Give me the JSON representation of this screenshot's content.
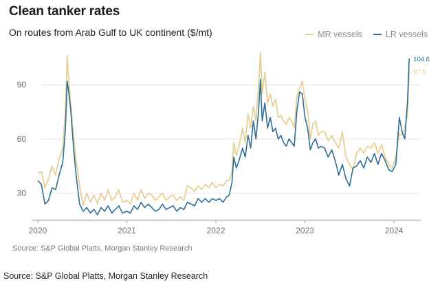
{
  "chart_data": {
    "type": "line",
    "title": "Clean tanker rates",
    "subtitle": "On routes from Arab Gulf to UK continent ($/mt)",
    "xlabel": "",
    "ylabel": "",
    "xlim": [
      2019.9,
      2024.3
    ],
    "ylim": [
      15,
      108
    ],
    "x_ticks": [
      {
        "value": 2020,
        "label": "2020"
      },
      {
        "value": 2021,
        "label": "2021"
      },
      {
        "value": 2022,
        "label": "2022"
      },
      {
        "value": 2023,
        "label": "2023"
      },
      {
        "value": 2024,
        "label": "2024"
      }
    ],
    "y_ticks": [
      {
        "value": 30,
        "label": "30"
      },
      {
        "value": 60,
        "label": "60"
      },
      {
        "value": 90,
        "label": "90"
      }
    ],
    "grid": true,
    "legend_position": "top-right",
    "series": [
      {
        "name": "MR vessels",
        "color": "#e6cf93",
        "end_label": "97.5",
        "points": [
          [
            2020.0,
            41
          ],
          [
            2020.04,
            42
          ],
          [
            2020.08,
            33
          ],
          [
            2020.12,
            38
          ],
          [
            2020.16,
            45
          ],
          [
            2020.2,
            40
          ],
          [
            2020.24,
            49
          ],
          [
            2020.28,
            55
          ],
          [
            2020.31,
            75
          ],
          [
            2020.33,
            106
          ],
          [
            2020.35,
            90
          ],
          [
            2020.37,
            80
          ],
          [
            2020.4,
            62
          ],
          [
            2020.43,
            48
          ],
          [
            2020.47,
            34
          ],
          [
            2020.51,
            23
          ],
          [
            2020.55,
            30
          ],
          [
            2020.59,
            25
          ],
          [
            2020.63,
            29
          ],
          [
            2020.67,
            24
          ],
          [
            2020.71,
            30
          ],
          [
            2020.75,
            26
          ],
          [
            2020.79,
            32
          ],
          [
            2020.83,
            26
          ],
          [
            2020.87,
            28
          ],
          [
            2020.91,
            32
          ],
          [
            2020.95,
            25
          ],
          [
            2021.0,
            26
          ],
          [
            2021.04,
            24
          ],
          [
            2021.08,
            30
          ],
          [
            2021.12,
            26
          ],
          [
            2021.16,
            32
          ],
          [
            2021.2,
            27
          ],
          [
            2021.24,
            30
          ],
          [
            2021.28,
            29
          ],
          [
            2021.32,
            26
          ],
          [
            2021.36,
            28
          ],
          [
            2021.4,
            30
          ],
          [
            2021.44,
            26
          ],
          [
            2021.48,
            28
          ],
          [
            2021.52,
            29
          ],
          [
            2021.56,
            26
          ],
          [
            2021.6,
            28
          ],
          [
            2021.64,
            26
          ],
          [
            2021.68,
            34
          ],
          [
            2021.72,
            33
          ],
          [
            2021.76,
            31
          ],
          [
            2021.8,
            34
          ],
          [
            2021.84,
            32
          ],
          [
            2021.88,
            35
          ],
          [
            2021.92,
            33
          ],
          [
            2021.96,
            36
          ],
          [
            2022.0,
            33
          ],
          [
            2022.04,
            35
          ],
          [
            2022.08,
            34
          ],
          [
            2022.12,
            37
          ],
          [
            2022.15,
            37
          ],
          [
            2022.18,
            42
          ],
          [
            2022.2,
            58
          ],
          [
            2022.23,
            51
          ],
          [
            2022.26,
            56
          ],
          [
            2022.3,
            66
          ],
          [
            2022.33,
            58
          ],
          [
            2022.36,
            74
          ],
          [
            2022.39,
            66
          ],
          [
            2022.42,
            78
          ],
          [
            2022.45,
            70
          ],
          [
            2022.48,
            90
          ],
          [
            2022.5,
            108
          ],
          [
            2022.52,
            85
          ],
          [
            2022.55,
            97
          ],
          [
            2022.58,
            80
          ],
          [
            2022.61,
            85
          ],
          [
            2022.64,
            78
          ],
          [
            2022.67,
            82
          ],
          [
            2022.7,
            72
          ],
          [
            2022.73,
            73
          ],
          [
            2022.76,
            70
          ],
          [
            2022.79,
            68
          ],
          [
            2022.82,
            72
          ],
          [
            2022.85,
            70
          ],
          [
            2022.88,
            66
          ],
          [
            2022.91,
            84
          ],
          [
            2022.94,
            88
          ],
          [
            2022.97,
            92
          ],
          [
            2023.0,
            82
          ],
          [
            2023.03,
            76
          ],
          [
            2023.06,
            60
          ],
          [
            2023.09,
            68
          ],
          [
            2023.12,
            70
          ],
          [
            2023.15,
            62
          ],
          [
            2023.18,
            64
          ],
          [
            2023.22,
            64
          ],
          [
            2023.26,
            59
          ],
          [
            2023.3,
            62
          ],
          [
            2023.34,
            58
          ],
          [
            2023.38,
            55
          ],
          [
            2023.42,
            64
          ],
          [
            2023.46,
            50
          ],
          [
            2023.5,
            46
          ],
          [
            2023.54,
            43
          ],
          [
            2023.58,
            52
          ],
          [
            2023.62,
            55
          ],
          [
            2023.66,
            52
          ],
          [
            2023.7,
            56
          ],
          [
            2023.74,
            55
          ],
          [
            2023.78,
            58
          ],
          [
            2023.82,
            52
          ],
          [
            2023.86,
            57
          ],
          [
            2023.9,
            50
          ],
          [
            2023.94,
            46
          ],
          [
            2023.98,
            44
          ],
          [
            2024.02,
            50
          ],
          [
            2024.06,
            63
          ],
          [
            2024.09,
            62
          ],
          [
            2024.12,
            66
          ],
          [
            2024.15,
            73
          ],
          [
            2024.17,
            97.5
          ]
        ]
      },
      {
        "name": "LR vessels",
        "color": "#2c6e96",
        "end_label": "104.6",
        "points": [
          [
            2020.0,
            37
          ],
          [
            2020.04,
            35
          ],
          [
            2020.08,
            24
          ],
          [
            2020.12,
            26
          ],
          [
            2020.16,
            33
          ],
          [
            2020.2,
            32
          ],
          [
            2020.24,
            40
          ],
          [
            2020.28,
            47
          ],
          [
            2020.31,
            65
          ],
          [
            2020.33,
            92
          ],
          [
            2020.35,
            85
          ],
          [
            2020.37,
            76
          ],
          [
            2020.4,
            56
          ],
          [
            2020.43,
            40
          ],
          [
            2020.47,
            24
          ],
          [
            2020.51,
            20
          ],
          [
            2020.55,
            22
          ],
          [
            2020.59,
            19
          ],
          [
            2020.63,
            21
          ],
          [
            2020.67,
            18
          ],
          [
            2020.71,
            22
          ],
          [
            2020.75,
            20
          ],
          [
            2020.79,
            23
          ],
          [
            2020.83,
            19
          ],
          [
            2020.87,
            21
          ],
          [
            2020.91,
            23
          ],
          [
            2020.95,
            19
          ],
          [
            2021.0,
            20
          ],
          [
            2021.04,
            19
          ],
          [
            2021.08,
            23
          ],
          [
            2021.12,
            21
          ],
          [
            2021.16,
            25
          ],
          [
            2021.2,
            22
          ],
          [
            2021.24,
            24
          ],
          [
            2021.28,
            22
          ],
          [
            2021.32,
            20
          ],
          [
            2021.36,
            21
          ],
          [
            2021.4,
            24
          ],
          [
            2021.44,
            21
          ],
          [
            2021.48,
            22
          ],
          [
            2021.52,
            23
          ],
          [
            2021.56,
            20
          ],
          [
            2021.6,
            22
          ],
          [
            2021.64,
            21
          ],
          [
            2021.68,
            25
          ],
          [
            2021.72,
            24
          ],
          [
            2021.76,
            23
          ],
          [
            2021.8,
            27
          ],
          [
            2021.84,
            25
          ],
          [
            2021.88,
            27
          ],
          [
            2021.92,
            25
          ],
          [
            2021.96,
            27
          ],
          [
            2022.0,
            26
          ],
          [
            2022.04,
            27
          ],
          [
            2022.08,
            25
          ],
          [
            2022.12,
            28
          ],
          [
            2022.15,
            29
          ],
          [
            2022.18,
            36
          ],
          [
            2022.2,
            50
          ],
          [
            2022.23,
            44
          ],
          [
            2022.26,
            48
          ],
          [
            2022.3,
            55
          ],
          [
            2022.33,
            50
          ],
          [
            2022.36,
            62
          ],
          [
            2022.39,
            55
          ],
          [
            2022.42,
            70
          ],
          [
            2022.45,
            60
          ],
          [
            2022.48,
            76
          ],
          [
            2022.5,
            93
          ],
          [
            2022.52,
            70
          ],
          [
            2022.55,
            80
          ],
          [
            2022.58,
            66
          ],
          [
            2022.61,
            72
          ],
          [
            2022.64,
            64
          ],
          [
            2022.67,
            66
          ],
          [
            2022.7,
            60
          ],
          [
            2022.73,
            62
          ],
          [
            2022.76,
            58
          ],
          [
            2022.79,
            56
          ],
          [
            2022.82,
            60
          ],
          [
            2022.85,
            58
          ],
          [
            2022.88,
            56
          ],
          [
            2022.91,
            76
          ],
          [
            2022.94,
            86
          ],
          [
            2022.97,
            85
          ],
          [
            2023.0,
            72
          ],
          [
            2023.03,
            66
          ],
          [
            2023.06,
            54
          ],
          [
            2023.09,
            58
          ],
          [
            2023.12,
            60
          ],
          [
            2023.15,
            55
          ],
          [
            2023.18,
            56
          ],
          [
            2023.22,
            55
          ],
          [
            2023.26,
            50
          ],
          [
            2023.3,
            54
          ],
          [
            2023.34,
            48
          ],
          [
            2023.38,
            40
          ],
          [
            2023.42,
            46
          ],
          [
            2023.46,
            38
          ],
          [
            2023.5,
            34
          ],
          [
            2023.54,
            44
          ],
          [
            2023.58,
            45
          ],
          [
            2023.62,
            48
          ],
          [
            2023.66,
            44
          ],
          [
            2023.7,
            50
          ],
          [
            2023.74,
            47
          ],
          [
            2023.78,
            52
          ],
          [
            2023.82,
            46
          ],
          [
            2023.86,
            52
          ],
          [
            2023.9,
            48
          ],
          [
            2023.94,
            43
          ],
          [
            2023.98,
            42
          ],
          [
            2024.02,
            46
          ],
          [
            2024.06,
            72
          ],
          [
            2024.09,
            64
          ],
          [
            2024.12,
            60
          ],
          [
            2024.15,
            80
          ],
          [
            2024.17,
            104.6
          ]
        ]
      }
    ]
  },
  "sources": {
    "inner": "Source: S&P Global Platts, Morgan Stanley Research",
    "outer": "Source: S&P Global Platts, Morgan Stanley Research"
  }
}
